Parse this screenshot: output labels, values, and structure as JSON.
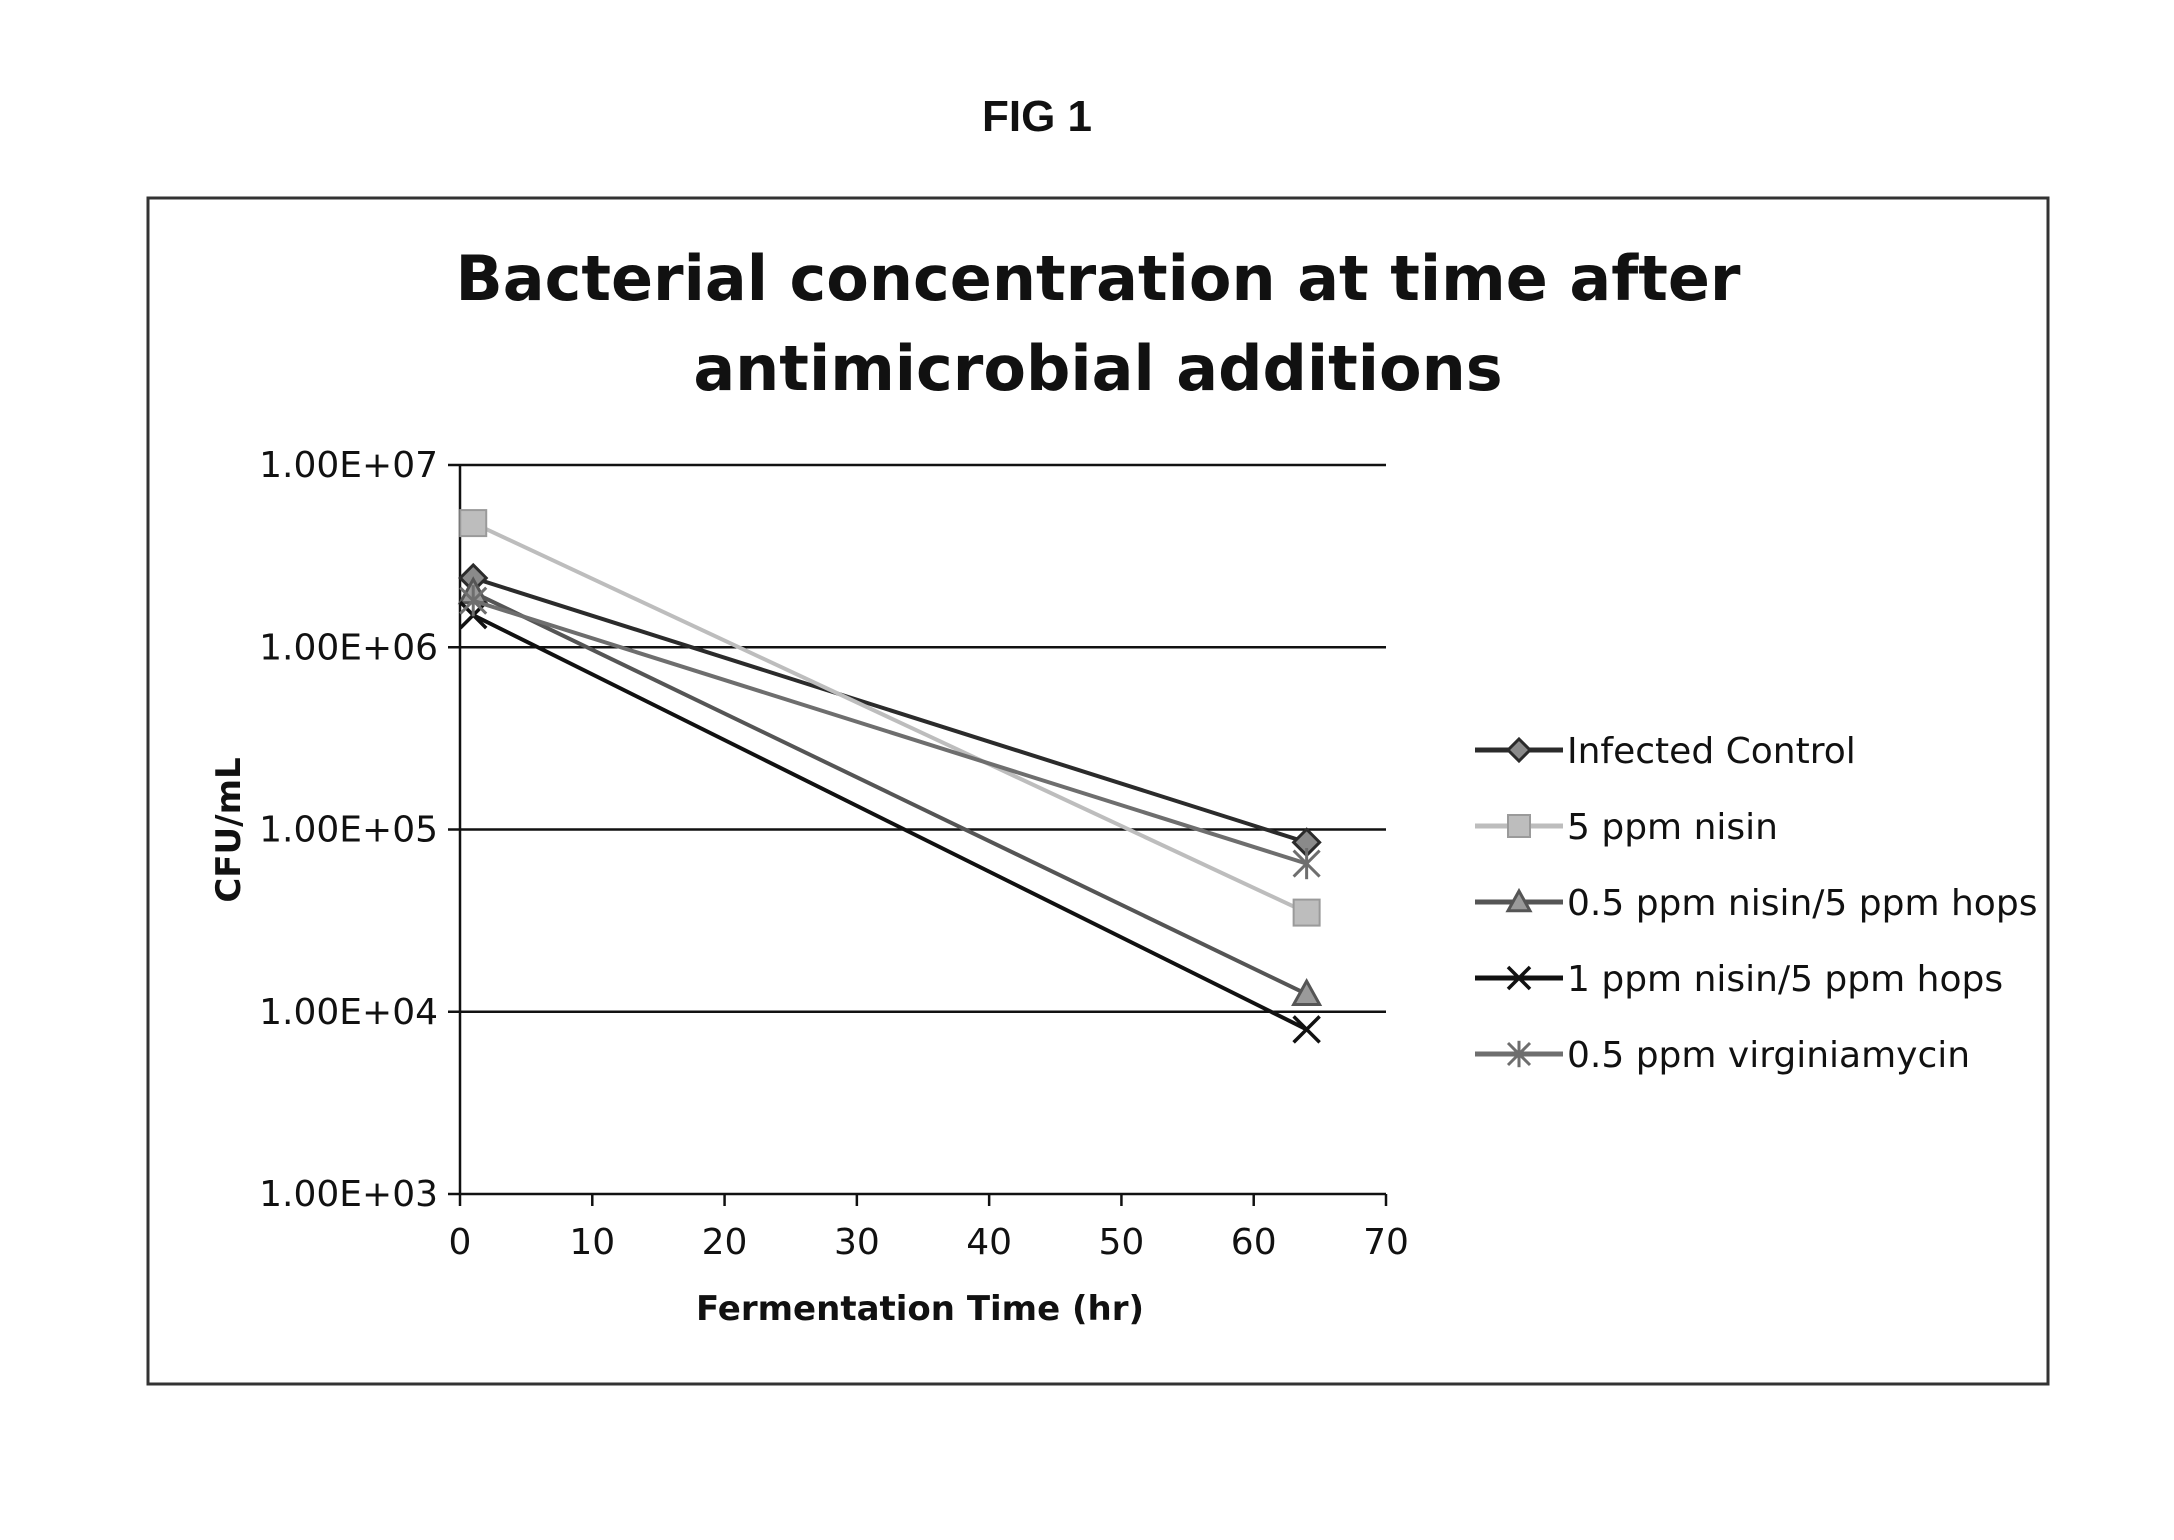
{
  "figure_label": "FIG 1",
  "chart_data": {
    "type": "line",
    "title_lines": [
      "Bacterial concentration at time after",
      "antimicrobial additions"
    ],
    "xlabel": "Fermentation Time (hr)",
    "ylabel": "CFU/mL",
    "xlim": [
      0,
      70
    ],
    "ylim": [
      1000,
      10000000
    ],
    "yscale": "log",
    "x_ticks": [
      0,
      10,
      20,
      30,
      40,
      50,
      60,
      70
    ],
    "x_tick_labels": [
      "0",
      "10",
      "20",
      "30",
      "40",
      "50",
      "60",
      "70"
    ],
    "y_ticks": [
      1000,
      10000,
      100000,
      1000000,
      10000000
    ],
    "y_tick_labels": [
      "1.00E+03",
      "1.00E+04",
      "1.00E+05",
      "1.00E+06",
      "1.00E+07"
    ],
    "grid": true,
    "legend_position": "right",
    "series": [
      {
        "name": "Infected Control",
        "marker": "diamond",
        "color": "#2b2b2b",
        "x": [
          1,
          64
        ],
        "y": [
          2400000,
          85000
        ]
      },
      {
        "name": "5 ppm nisin",
        "marker": "square",
        "color": "#bdbdbd",
        "x": [
          1,
          64
        ],
        "y": [
          4800000,
          35000
        ]
      },
      {
        "name": "0.5 ppm nisin/5 ppm hops",
        "marker": "triangle",
        "color": "#555555",
        "x": [
          1,
          64
        ],
        "y": [
          2000000,
          12500
        ]
      },
      {
        "name": "1 ppm nisin/5 ppm hops",
        "marker": "x",
        "color": "#111111",
        "x": [
          1,
          64
        ],
        "y": [
          1500000,
          8000
        ]
      },
      {
        "name": "0.5 ppm virginiamycin",
        "marker": "star",
        "color": "#6e6e6e",
        "x": [
          1,
          64
        ],
        "y": [
          1800000,
          65000
        ]
      }
    ]
  }
}
